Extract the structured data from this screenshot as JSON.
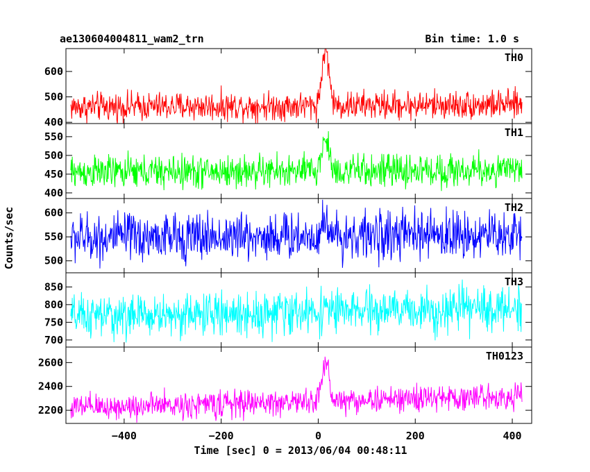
{
  "header": {
    "left_title": "ae130604004811_wam2_trn",
    "right_title": "Bin time: 1.0 s"
  },
  "chart_data": {
    "type": "line",
    "xlabel": "Time [sec] 0 = 2013/06/04 00:48:11",
    "ylabel": "Counts/sec",
    "xlim": [
      -520,
      440
    ],
    "x_ticks": [
      -400,
      -200,
      0,
      200,
      400
    ],
    "x_tick_labels": [
      "−400",
      "−200",
      "0",
      "200",
      "400"
    ],
    "bin_time_s": 1.0,
    "x_range": [
      -510,
      420
    ],
    "panels": [
      {
        "name": "TH0",
        "color": "#ff0000",
        "ylim": [
          395,
          690
        ],
        "y_ticks": [
          400,
          500,
          600
        ],
        "baseline_start": 460,
        "baseline_end": 470,
        "noise_amp": 28,
        "burst": {
          "center": 15,
          "width": 10,
          "peak": 230
        },
        "post_step": 0
      },
      {
        "name": "TH1",
        "color": "#00ff00",
        "ylim": [
          385,
          585
        ],
        "y_ticks": [
          400,
          450,
          500,
          550
        ],
        "baseline_start": 455,
        "baseline_end": 460,
        "noise_amp": 22,
        "burst": {
          "center": 15,
          "width": 10,
          "peak": 90
        },
        "post_step": 0
      },
      {
        "name": "TH2",
        "color": "#0000ff",
        "ylim": [
          475,
          630
        ],
        "y_ticks": [
          500,
          550,
          600
        ],
        "baseline_start": 548,
        "baseline_end": 555,
        "noise_amp": 25,
        "burst": {
          "center": 15,
          "width": 8,
          "peak": 40
        },
        "post_step": 0
      },
      {
        "name": "TH3",
        "color": "#00ffff",
        "ylim": [
          680,
          890
        ],
        "y_ticks": [
          700,
          750,
          800,
          850
        ],
        "baseline_start": 765,
        "baseline_end": 790,
        "noise_amp": 30,
        "burst": {
          "center": 15,
          "width": 8,
          "peak": 20
        },
        "post_step": 0
      },
      {
        "name": "TH0123",
        "color": "#ff00ff",
        "ylim": [
          2090,
          2730
        ],
        "y_ticks": [
          2200,
          2400,
          2600
        ],
        "baseline_start": 2220,
        "baseline_end": 2320,
        "noise_amp": 55,
        "burst": {
          "center": 15,
          "width": 10,
          "peak": 330
        },
        "post_step": 0
      }
    ]
  }
}
